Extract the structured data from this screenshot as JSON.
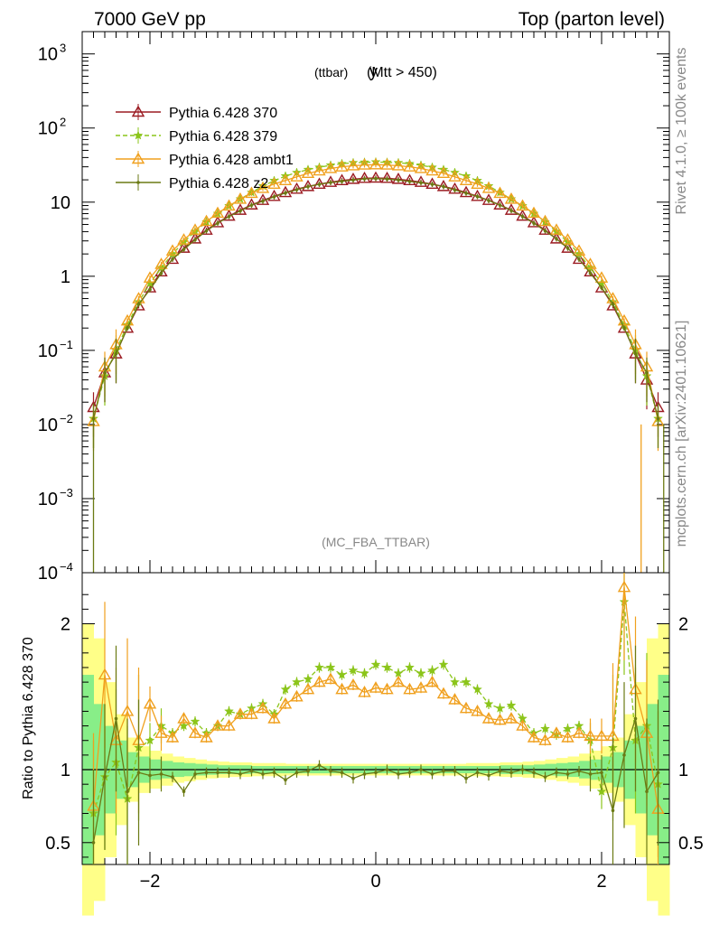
{
  "header": {
    "left": "7000 GeV pp",
    "right": "Top (parton level)"
  },
  "side": {
    "top": "Rivet 4.1.0, ≥ 100k events",
    "bottom": "mcplots.cern.ch [arXiv:2401.10621]"
  },
  "chart_data": [
    {
      "type": "line",
      "title_main": "y",
      "title_sub": "(ttbar)",
      "title_cut": "(Mtt > 450)",
      "analysis_label": "(MC_FBA_TTBAR)",
      "yscale": "log",
      "xlim": [
        -2.6,
        2.6
      ],
      "ylim": [
        0.0001,
        2000
      ],
      "y_ticks": [
        {
          "v": 1000,
          "base": "10",
          "exp": "3"
        },
        {
          "v": 100,
          "base": "10",
          "exp": "2"
        },
        {
          "v": 10,
          "base": "10",
          "exp": ""
        },
        {
          "v": 1,
          "base": "1",
          "exp": ""
        },
        {
          "v": 0.1,
          "base": "10",
          "exp": "−1"
        },
        {
          "v": 0.01,
          "base": "10",
          "exp": "−2"
        },
        {
          "v": 0.001,
          "base": "10",
          "exp": "−3"
        },
        {
          "v": 0.0001,
          "base": "10",
          "exp": "−4"
        }
      ],
      "legend": {
        "position": "top-left"
      },
      "series": [
        {
          "name": "Pythia 6.428 370",
          "color": "#9b1b22",
          "marker": "triangle-open",
          "dash": "",
          "x": [
            -2.5,
            -2.4,
            -2.3,
            -2.2,
            -2.1,
            -2.0,
            -1.9,
            -1.8,
            -1.7,
            -1.6,
            -1.5,
            -1.4,
            -1.3,
            -1.2,
            -1.1,
            -1.0,
            -0.9,
            -0.8,
            -0.7,
            -0.6,
            -0.5,
            -0.4,
            -0.3,
            -0.2,
            -0.1,
            0.0,
            0.1,
            0.2,
            0.3,
            0.4,
            0.5,
            0.6,
            0.7,
            0.8,
            0.9,
            1.0,
            1.1,
            1.2,
            1.3,
            1.4,
            1.5,
            1.6,
            1.7,
            1.8,
            1.9,
            2.0,
            2.1,
            2.2,
            2.3,
            2.4,
            2.5
          ],
          "y": [
            0.017,
            0.05,
            0.09,
            0.2,
            0.4,
            0.7,
            1.15,
            1.7,
            2.4,
            3.2,
            4.2,
            5.3,
            6.5,
            7.8,
            9.2,
            10.6,
            12,
            13.5,
            15,
            16.3,
            17.5,
            18.6,
            19.6,
            20.4,
            21,
            21.2,
            21,
            20.4,
            19.6,
            18.6,
            17.5,
            16.3,
            15,
            13.5,
            12,
            10.6,
            9.2,
            7.8,
            6.5,
            5.3,
            4.2,
            3.2,
            2.4,
            1.7,
            1.15,
            0.7,
            0.4,
            0.2,
            0.09,
            0.04,
            0.017
          ]
        },
        {
          "name": "Pythia 6.428 379",
          "color": "#8bc51a",
          "marker": "star",
          "dash": "5,3",
          "x": [
            -2.5,
            -2.4,
            -2.3,
            -2.2,
            -2.1,
            -2.0,
            -1.9,
            -1.8,
            -1.7,
            -1.6,
            -1.5,
            -1.4,
            -1.3,
            -1.2,
            -1.1,
            -1.0,
            -0.9,
            -0.8,
            -0.7,
            -0.6,
            -0.5,
            -0.4,
            -0.3,
            -0.2,
            -0.1,
            0.0,
            0.1,
            0.2,
            0.3,
            0.4,
            0.5,
            0.6,
            0.7,
            0.8,
            0.9,
            1.0,
            1.1,
            1.2,
            1.3,
            1.4,
            1.5,
            1.6,
            1.7,
            1.8,
            1.9,
            2.0,
            2.1,
            2.2,
            2.3,
            2.4,
            2.5
          ],
          "y": [
            0.012,
            0.045,
            0.1,
            0.22,
            0.45,
            0.8,
            1.3,
            2.0,
            2.9,
            4.0,
            5.4,
            7.0,
            8.9,
            11,
            13.5,
            16.5,
            19.5,
            22.5,
            25,
            27.5,
            29.5,
            31.5,
            33,
            34,
            34.5,
            34.8,
            34.5,
            34,
            33,
            31.5,
            29.5,
            27.5,
            25,
            22.5,
            19.5,
            16.5,
            13.5,
            11,
            8.9,
            7.0,
            5.4,
            4.0,
            2.9,
            2.0,
            1.3,
            0.8,
            0.45,
            0.22,
            0.1,
            0.045,
            0.012
          ]
        },
        {
          "name": "Pythia 6.428 ambt1",
          "color": "#f0a01e",
          "marker": "triangle-open",
          "dash": "",
          "x": [
            -2.5,
            -2.4,
            -2.3,
            -2.2,
            -2.1,
            -2.0,
            -1.9,
            -1.8,
            -1.7,
            -1.6,
            -1.5,
            -1.4,
            -1.3,
            -1.2,
            -1.1,
            -1.0,
            -0.9,
            -0.8,
            -0.7,
            -0.6,
            -0.5,
            -0.4,
            -0.3,
            -0.2,
            -0.1,
            0.0,
            0.1,
            0.2,
            0.3,
            0.4,
            0.5,
            0.6,
            0.7,
            0.8,
            0.9,
            1.0,
            1.1,
            1.2,
            1.3,
            1.4,
            1.5,
            1.6,
            1.7,
            1.8,
            1.9,
            2.0,
            2.1,
            2.2,
            2.3,
            2.4,
            2.5
          ],
          "y": [
            0.011,
            0.06,
            0.12,
            0.25,
            0.5,
            0.95,
            1.45,
            2.2,
            3.1,
            4.2,
            5.5,
            7.1,
            8.9,
            11,
            13.2,
            15.4,
            17.5,
            19.6,
            22,
            24.5,
            26.5,
            28.5,
            30,
            31,
            31.8,
            32,
            31.8,
            31,
            30,
            28.5,
            26.5,
            24.5,
            22,
            19.6,
            17.5,
            15.4,
            13.2,
            11,
            8.9,
            7.1,
            5.5,
            4.2,
            3.1,
            2.2,
            1.45,
            0.95,
            0.5,
            0.25,
            0.12,
            0.06,
            0.011
          ]
        },
        {
          "name": "Pythia 6.428 z2",
          "color": "#6b7a14",
          "marker": "dot",
          "dash": "",
          "x": [
            -2.5,
            -2.4,
            -2.3,
            -2.2,
            -2.1,
            -2.0,
            -1.9,
            -1.8,
            -1.7,
            -1.6,
            -1.5,
            -1.4,
            -1.3,
            -1.2,
            -1.1,
            -1.0,
            -0.9,
            -0.8,
            -0.7,
            -0.6,
            -0.5,
            -0.4,
            -0.3,
            -0.2,
            -0.1,
            0.0,
            0.1,
            0.2,
            0.3,
            0.4,
            0.5,
            0.6,
            0.7,
            0.8,
            0.9,
            1.0,
            1.1,
            1.2,
            1.3,
            1.4,
            1.5,
            1.6,
            1.7,
            1.8,
            1.9,
            2.0,
            2.1,
            2.2,
            2.3,
            2.4,
            2.5
          ],
          "y": [
            0.012,
            0.05,
            0.09,
            0.2,
            0.42,
            0.66,
            1.1,
            1.7,
            2.3,
            3.1,
            4.1,
            5.2,
            6.4,
            7.6,
            9.1,
            10.3,
            11.8,
            13.3,
            14.7,
            16.2,
            17.4,
            18.4,
            19.1,
            19.9,
            20.6,
            20.8,
            20.5,
            19.9,
            19.0,
            18.3,
            17.4,
            16.2,
            14.6,
            13.2,
            11.9,
            10.5,
            9.1,
            7.7,
            6.4,
            5.2,
            4.1,
            3.2,
            2.4,
            1.7,
            1.1,
            0.7,
            0.42,
            0.2,
            0.09,
            0.05,
            0.012
          ]
        }
      ]
    },
    {
      "type": "line",
      "ylabel": "Ratio to Pythia 6.428 370",
      "xlim": [
        -2.6,
        2.6
      ],
      "ylim": [
        0.35,
        2.35
      ],
      "y_ticks": [
        "2",
        "1",
        "0.5"
      ],
      "x_ticks": [
        "−2",
        "0",
        "2"
      ],
      "bands": {
        "x": [
          -2.55,
          -2.45,
          -2.35,
          -2.25,
          -2.15,
          -2.05,
          -1.95,
          -1.85,
          -1.75,
          -1.65,
          -1.55,
          -1.45,
          -1.35,
          -1.25,
          -1.15,
          -1.05,
          -0.95,
          -0.85,
          -0.75,
          -0.65,
          -0.55,
          -0.45,
          -0.35,
          -0.25,
          -0.15,
          -0.05,
          0.05,
          0.15,
          0.25,
          0.35,
          0.45,
          0.55,
          0.65,
          0.75,
          0.85,
          0.95,
          1.05,
          1.15,
          1.25,
          1.35,
          1.45,
          1.55,
          1.65,
          1.75,
          1.85,
          1.95,
          2.05,
          2.15,
          2.25,
          2.35,
          2.45,
          2.55
        ],
        "green_half": [
          0.65,
          0.45,
          0.3,
          0.2,
          0.12,
          0.09,
          0.07,
          0.06,
          0.05,
          0.045,
          0.04,
          0.035,
          0.03,
          0.03,
          0.03,
          0.025,
          0.025,
          0.025,
          0.025,
          0.025,
          0.025,
          0.025,
          0.025,
          0.025,
          0.025,
          0.025,
          0.025,
          0.025,
          0.025,
          0.025,
          0.025,
          0.025,
          0.025,
          0.025,
          0.025,
          0.025,
          0.025,
          0.03,
          0.03,
          0.03,
          0.035,
          0.04,
          0.045,
          0.05,
          0.06,
          0.07,
          0.09,
          0.12,
          0.2,
          0.3,
          0.45,
          0.65
        ],
        "yellow_half": [
          1.0,
          0.9,
          0.6,
          0.38,
          0.22,
          0.16,
          0.13,
          0.11,
          0.09,
          0.08,
          0.07,
          0.06,
          0.055,
          0.05,
          0.05,
          0.045,
          0.045,
          0.045,
          0.04,
          0.04,
          0.04,
          0.04,
          0.04,
          0.04,
          0.04,
          0.04,
          0.04,
          0.04,
          0.04,
          0.04,
          0.04,
          0.04,
          0.04,
          0.04,
          0.045,
          0.045,
          0.045,
          0.05,
          0.05,
          0.055,
          0.06,
          0.07,
          0.08,
          0.09,
          0.11,
          0.13,
          0.16,
          0.22,
          0.38,
          0.6,
          0.9,
          1.0
        ]
      },
      "series": [
        {
          "name": "Pythia 6.428 379",
          "color": "#8bc51a",
          "dash": "5,3",
          "x": [
            -2.5,
            -2.4,
            -2.3,
            -2.2,
            -2.1,
            -2.0,
            -1.9,
            -1.8,
            -1.7,
            -1.6,
            -1.5,
            -1.4,
            -1.3,
            -1.2,
            -1.1,
            -1.0,
            -0.9,
            -0.8,
            -0.7,
            -0.6,
            -0.5,
            -0.4,
            -0.3,
            -0.2,
            -0.1,
            0.0,
            0.1,
            0.2,
            0.3,
            0.4,
            0.5,
            0.6,
            0.7,
            0.8,
            0.9,
            1.0,
            1.1,
            1.2,
            1.3,
            1.4,
            1.5,
            1.6,
            1.7,
            1.8,
            1.9,
            2.0,
            2.1,
            2.2,
            2.3,
            2.4,
            2.5
          ],
          "y": [
            0.7,
            0.95,
            1.05,
            0.8,
            1.15,
            1.2,
            1.3,
            1.25,
            1.3,
            1.33,
            1.25,
            1.3,
            1.4,
            1.38,
            1.42,
            1.45,
            1.38,
            1.55,
            1.6,
            1.62,
            1.7,
            1.7,
            1.65,
            1.68,
            1.66,
            1.72,
            1.7,
            1.66,
            1.7,
            1.66,
            1.68,
            1.72,
            1.6,
            1.6,
            1.55,
            1.45,
            1.42,
            1.44,
            1.35,
            1.25,
            1.28,
            1.24,
            1.28,
            1.3,
            1.2,
            0.85,
            1.15,
            2.15,
            1.2,
            1.3,
            0.9
          ]
        },
        {
          "name": "Pythia 6.428 ambt1",
          "color": "#f0a01e",
          "dash": "",
          "x": [
            -2.5,
            -2.4,
            -2.3,
            -2.2,
            -2.1,
            -2.0,
            -1.9,
            -1.8,
            -1.7,
            -1.6,
            -1.5,
            -1.4,
            -1.3,
            -1.2,
            -1.1,
            -1.0,
            -0.9,
            -0.8,
            -0.7,
            -0.6,
            -0.5,
            -0.4,
            -0.3,
            -0.2,
            -0.1,
            0.0,
            0.1,
            0.2,
            0.3,
            0.4,
            0.5,
            0.6,
            0.7,
            0.8,
            0.9,
            1.0,
            1.1,
            1.2,
            1.3,
            1.4,
            1.5,
            1.6,
            1.7,
            1.8,
            1.9,
            2.0,
            2.1,
            2.2,
            2.3,
            2.4,
            2.5
          ],
          "y": [
            0.75,
            1.65,
            1.2,
            1.4,
            1.2,
            1.45,
            1.25,
            1.22,
            1.35,
            1.25,
            1.22,
            1.3,
            1.3,
            1.38,
            1.38,
            1.42,
            1.35,
            1.45,
            1.5,
            1.55,
            1.6,
            1.62,
            1.55,
            1.58,
            1.53,
            1.56,
            1.55,
            1.6,
            1.55,
            1.56,
            1.6,
            1.52,
            1.48,
            1.42,
            1.4,
            1.35,
            1.34,
            1.35,
            1.3,
            1.22,
            1.2,
            1.25,
            1.22,
            1.25,
            1.23,
            1.23,
            1.23,
            2.25,
            1.55,
            1.25,
            0.73
          ]
        },
        {
          "name": "Pythia 6.428 z2",
          "color": "#6b7a14",
          "dash": "",
          "x": [
            -2.5,
            -2.4,
            -2.3,
            -2.2,
            -2.1,
            -2.0,
            -1.9,
            -1.8,
            -1.7,
            -1.6,
            -1.5,
            -1.4,
            -1.3,
            -1.2,
            -1.1,
            -1.0,
            -0.9,
            -0.8,
            -0.7,
            -0.6,
            -0.5,
            -0.4,
            -0.3,
            -0.2,
            -0.1,
            0.0,
            0.1,
            0.2,
            0.3,
            0.4,
            0.5,
            0.6,
            0.7,
            0.8,
            0.9,
            1.0,
            1.1,
            1.2,
            1.3,
            1.4,
            1.5,
            1.6,
            1.7,
            1.8,
            1.9,
            2.0,
            2.1,
            2.2,
            2.3,
            2.4,
            2.5
          ],
          "y": [
            0.5,
            0.95,
            1.35,
            0.85,
            0.98,
            0.96,
            0.97,
            0.95,
            0.85,
            0.97,
            0.98,
            0.98,
            0.98,
            0.97,
            0.99,
            0.97,
            0.98,
            0.93,
            0.98,
            0.99,
            1.03,
            0.99,
            0.98,
            0.94,
            0.97,
            0.98,
            1.0,
            0.97,
            0.98,
            1.0,
            0.97,
            0.99,
            0.99,
            0.94,
            0.98,
            0.96,
            0.99,
            0.98,
            1.0,
            0.98,
            0.95,
            0.98,
            0.97,
            0.99,
            0.97,
            0.98,
            0.72,
            1.1,
            1.35,
            0.85,
            0.98
          ]
        }
      ]
    }
  ]
}
